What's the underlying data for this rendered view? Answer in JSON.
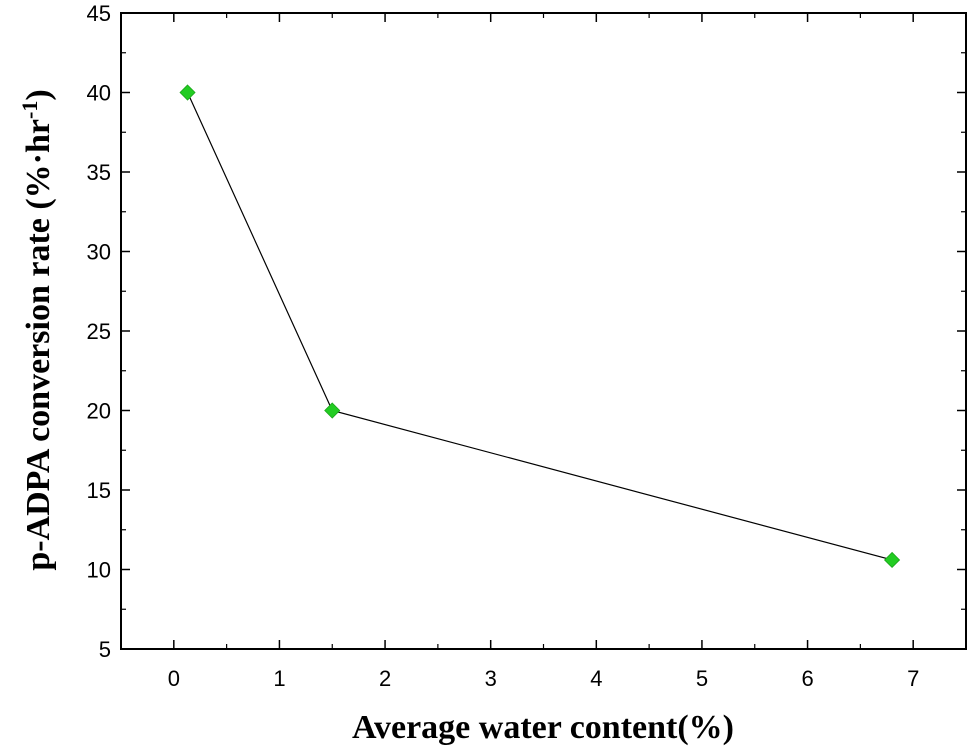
{
  "chart_data": {
    "type": "line",
    "x": [
      0.13,
      1.5,
      6.8
    ],
    "series": [
      {
        "values": [
          40,
          20,
          10.6
        ]
      }
    ],
    "xlabel": "Average water content(%)",
    "ylabel": "p-ADPA conversion rate (%·hr",
    "ylabel_superscript": "-1",
    "ylabel_suffix": ")",
    "xlim": [
      -0.5,
      7.5
    ],
    "ylim": [
      5,
      45
    ],
    "xticks": [
      0,
      1,
      2,
      3,
      4,
      5,
      6,
      7
    ],
    "yticks": [
      5,
      10,
      15,
      20,
      25,
      30,
      35,
      40,
      45
    ],
    "xtick_labels": [
      "0",
      "1",
      "2",
      "3",
      "4",
      "5",
      "6",
      "7"
    ],
    "ytick_labels": [
      "5",
      "10",
      "15",
      "20",
      "25",
      "30",
      "35",
      "40",
      "45"
    ],
    "grid": false,
    "marker": "diamond",
    "colors": {
      "marker_fill": "#22cc22",
      "line": "#000000",
      "axes": "#000000"
    }
  }
}
